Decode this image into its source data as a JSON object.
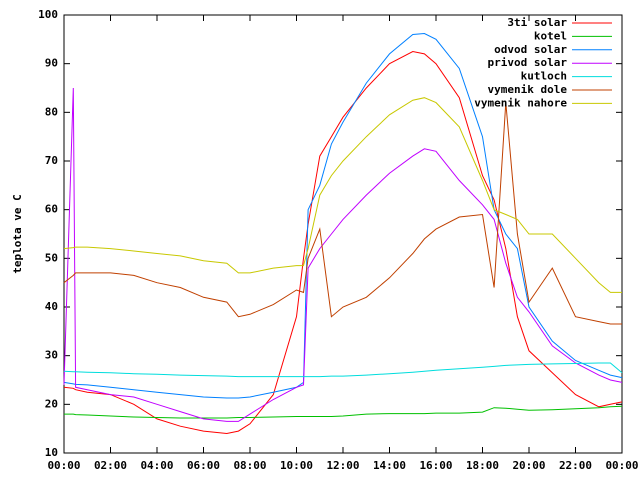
{
  "chart_data": {
    "type": "line",
    "y_label": "teplota ve C",
    "x": [
      0,
      0.4,
      0.5,
      1,
      2,
      3,
      4,
      5,
      6,
      7,
      7.5,
      8,
      9,
      10,
      10.3,
      10.5,
      11,
      11.5,
      12,
      13,
      14,
      15,
      15.5,
      16,
      17,
      18,
      18.5,
      19,
      19.5,
      20,
      21,
      22,
      23,
      23.5,
      24
    ],
    "series": [
      {
        "name": "3ti solar",
        "color": "#ff0000",
        "values": [
          23.5,
          23.3,
          23,
          22.5,
          22,
          20,
          17,
          15.5,
          14.5,
          14,
          14.5,
          16,
          22,
          38,
          50,
          57,
          71,
          75,
          79,
          85,
          90,
          92.5,
          92,
          90,
          83,
          67,
          62,
          52,
          38,
          31,
          26.5,
          22,
          19.5,
          20,
          20.5
        ]
      },
      {
        "name": "kotel",
        "color": "#00c000",
        "values": [
          18,
          18,
          17.9,
          17.8,
          17.6,
          17.4,
          17.3,
          17.2,
          17.2,
          17.2,
          17.3,
          17.3,
          17.4,
          17.5,
          17.5,
          17.5,
          17.5,
          17.5,
          17.6,
          18,
          18.1,
          18.1,
          18.1,
          18.2,
          18.2,
          18.4,
          19.3,
          19.2,
          19,
          18.8,
          18.9,
          19.1,
          19.3,
          19.5,
          19.6
        ]
      },
      {
        "name": "odvod solar",
        "color": "#0080ff",
        "values": [
          24.5,
          24.2,
          24.1,
          24,
          23.5,
          23,
          22.5,
          22,
          21.5,
          21.3,
          21.3,
          21.5,
          22.5,
          23.5,
          24.5,
          60,
          65,
          73.5,
          78,
          86,
          92,
          96,
          96.2,
          95,
          89,
          75,
          60,
          55,
          52,
          40,
          33,
          29,
          27,
          26,
          25.5
        ]
      },
      {
        "name": "privod solar",
        "color": "#c000ff",
        "values": [
          24,
          85,
          23.5,
          23,
          22,
          21.5,
          20,
          18.5,
          17,
          16.5,
          16.5,
          18,
          21,
          23.5,
          24,
          48,
          52,
          55,
          58,
          63,
          67.5,
          71,
          72.5,
          72,
          66,
          61,
          58,
          49,
          42,
          39,
          32,
          28.5,
          26,
          25,
          24.5
        ]
      },
      {
        "name": "kutloch",
        "color": "#00dddd",
        "values": [
          26.8,
          26.7,
          26.7,
          26.6,
          26.5,
          26.3,
          26.2,
          26,
          25.9,
          25.8,
          25.7,
          25.7,
          25.7,
          25.7,
          25.7,
          25.7,
          25.7,
          25.8,
          25.8,
          26,
          26.3,
          26.6,
          26.8,
          27,
          27.3,
          27.6,
          27.8,
          28,
          28.1,
          28.2,
          28.3,
          28.4,
          28.5,
          28.5,
          26.5
        ]
      },
      {
        "name": "vymenik dole",
        "color": "#c04000",
        "values": [
          45,
          46.5,
          47,
          47,
          47,
          46.5,
          45,
          44,
          42,
          41,
          38,
          38.5,
          40.5,
          43.5,
          43,
          50,
          56,
          38,
          40,
          42,
          46,
          51,
          54,
          56,
          58.5,
          59,
          44,
          82,
          55,
          41,
          48,
          38,
          37,
          36.5,
          36.5
        ]
      },
      {
        "name": "vymenik nahore",
        "color": "#c8c800",
        "values": [
          52,
          52.2,
          52.3,
          52.3,
          52,
          51.5,
          51,
          50.5,
          49.5,
          49,
          47,
          47,
          48,
          48.5,
          48.5,
          52,
          63,
          67,
          70,
          75,
          79.5,
          82.5,
          83,
          82,
          77,
          66,
          60,
          59,
          58,
          55,
          55,
          50,
          45,
          43,
          43
        ]
      }
    ],
    "xlim": [
      0,
      24
    ],
    "xticks": [
      {
        "value": 0,
        "label": "00:00"
      },
      {
        "value": 2,
        "label": "02:00"
      },
      {
        "value": 4,
        "label": "04:00"
      },
      {
        "value": 6,
        "label": "06:00"
      },
      {
        "value": 8,
        "label": "08:00"
      },
      {
        "value": 10,
        "label": "10:00"
      },
      {
        "value": 12,
        "label": "12:00"
      },
      {
        "value": 14,
        "label": "14:00"
      },
      {
        "value": 16,
        "label": "16:00"
      },
      {
        "value": 18,
        "label": "18:00"
      },
      {
        "value": 20,
        "label": "20:00"
      },
      {
        "value": 22,
        "label": "22:00"
      },
      {
        "value": 24,
        "label": "00:00"
      }
    ],
    "ylim": [
      10,
      100
    ],
    "yticks": [
      10,
      20,
      30,
      40,
      50,
      60,
      70,
      80,
      90,
      100
    ],
    "legend": "top-right"
  }
}
